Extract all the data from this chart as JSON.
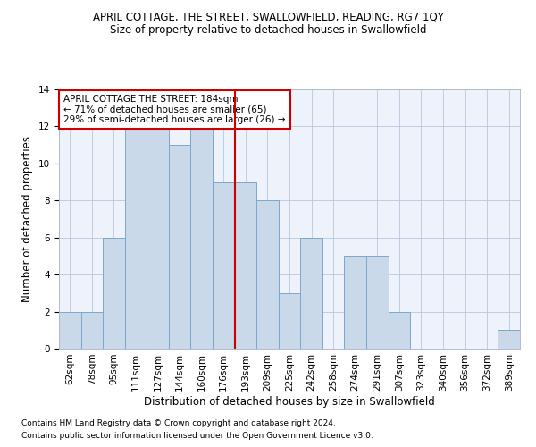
{
  "title": "APRIL COTTAGE, THE STREET, SWALLOWFIELD, READING, RG7 1QY",
  "subtitle": "Size of property relative to detached houses in Swallowfield",
  "xlabel": "Distribution of detached houses by size in Swallowfield",
  "ylabel": "Number of detached properties",
  "footer1": "Contains HM Land Registry data © Crown copyright and database right 2024.",
  "footer2": "Contains public sector information licensed under the Open Government Licence v3.0.",
  "annotation_line1": "APRIL COTTAGE THE STREET: 184sqm",
  "annotation_line2": "← 71% of detached houses are smaller (65)",
  "annotation_line3": "29% of semi-detached houses are larger (26) →",
  "bar_labels": [
    "62sqm",
    "78sqm",
    "95sqm",
    "111sqm",
    "127sqm",
    "144sqm",
    "160sqm",
    "176sqm",
    "193sqm",
    "209sqm",
    "225sqm",
    "242sqm",
    "258sqm",
    "274sqm",
    "291sqm",
    "307sqm",
    "323sqm",
    "340sqm",
    "356sqm",
    "372sqm",
    "389sqm"
  ],
  "bar_values": [
    2,
    2,
    6,
    12,
    12,
    11,
    12,
    9,
    9,
    8,
    3,
    6,
    0,
    5,
    5,
    2,
    0,
    0,
    0,
    0,
    1
  ],
  "bar_color": "#c9d9ea",
  "bar_edge_color": "#7aa8cc",
  "vline_color": "#cc0000",
  "ylim": [
    0,
    14
  ],
  "yticks": [
    0,
    2,
    4,
    6,
    8,
    10,
    12,
    14
  ],
  "annotation_box_color": "#cc0000",
  "background_color": "#eef2fb",
  "title_fontsize": 8.5,
  "subtitle_fontsize": 8.5,
  "ylabel_fontsize": 8.5,
  "xlabel_fontsize": 8.5,
  "tick_fontsize": 7.5,
  "footer_fontsize": 6.5,
  "annot_fontsize": 7.5
}
